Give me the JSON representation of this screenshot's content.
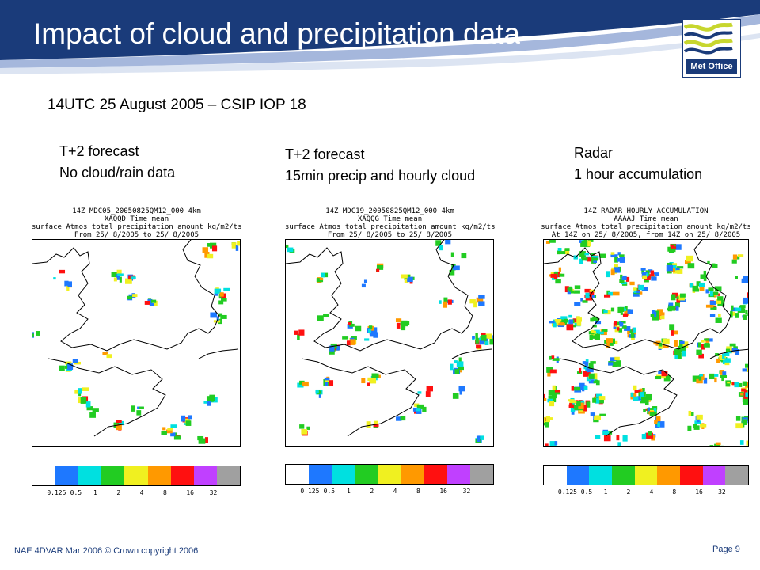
{
  "slide": {
    "title": "Impact of cloud and precipitation data",
    "subtitle": "14UTC 25 August 2005 – CSIP IOP 18",
    "logo_text": "Met Office",
    "footer_left": "NAE 4DVAR Mar 2006 © Crown copyright 2006",
    "footer_right": "Page 9"
  },
  "panels": [
    {
      "heading_line1": "T+2 forecast",
      "heading_line2": "No cloud/rain data",
      "map_title": [
        "14Z   MDC05_20050825QM12_000 4km",
        "XAQQD Time mean",
        "surface Atmos total precipitation amount kg/m2/ts",
        "From 25/ 8/2005 to 25/ 8/2005"
      ]
    },
    {
      "heading_line1": "T+2 forecast",
      "heading_line2": "15min precip and hourly cloud",
      "map_title": [
        "14Z   MDC19_20050825QM12_000 4km",
        "XAQQG Time mean",
        "surface Atmos total precipitation amount kg/m2/ts",
        "From 25/ 8/2005 to 25/ 8/2005"
      ]
    },
    {
      "heading_line1": "Radar",
      "heading_line2": "1 hour accumulation",
      "map_title": [
        "14Z RADAR HOURLY ACCUMULATION",
        "AAAAJ Time mean",
        "surface Atmos total precipitation amount kg/m2/ts",
        "At 14Z on 25/ 8/2005, from 14Z on 25/ 8/2005"
      ]
    }
  ],
  "colorbar": {
    "labels": [
      "0.125",
      "0.5",
      "1",
      "2",
      "4",
      "8",
      "16",
      "32"
    ],
    "colors": [
      "#ffffff",
      "#1e78ff",
      "#00e0e0",
      "#22cc22",
      "#f0f020",
      "#ff9900",
      "#ff1010",
      "#c040ff",
      "#a0a0a0"
    ]
  }
}
